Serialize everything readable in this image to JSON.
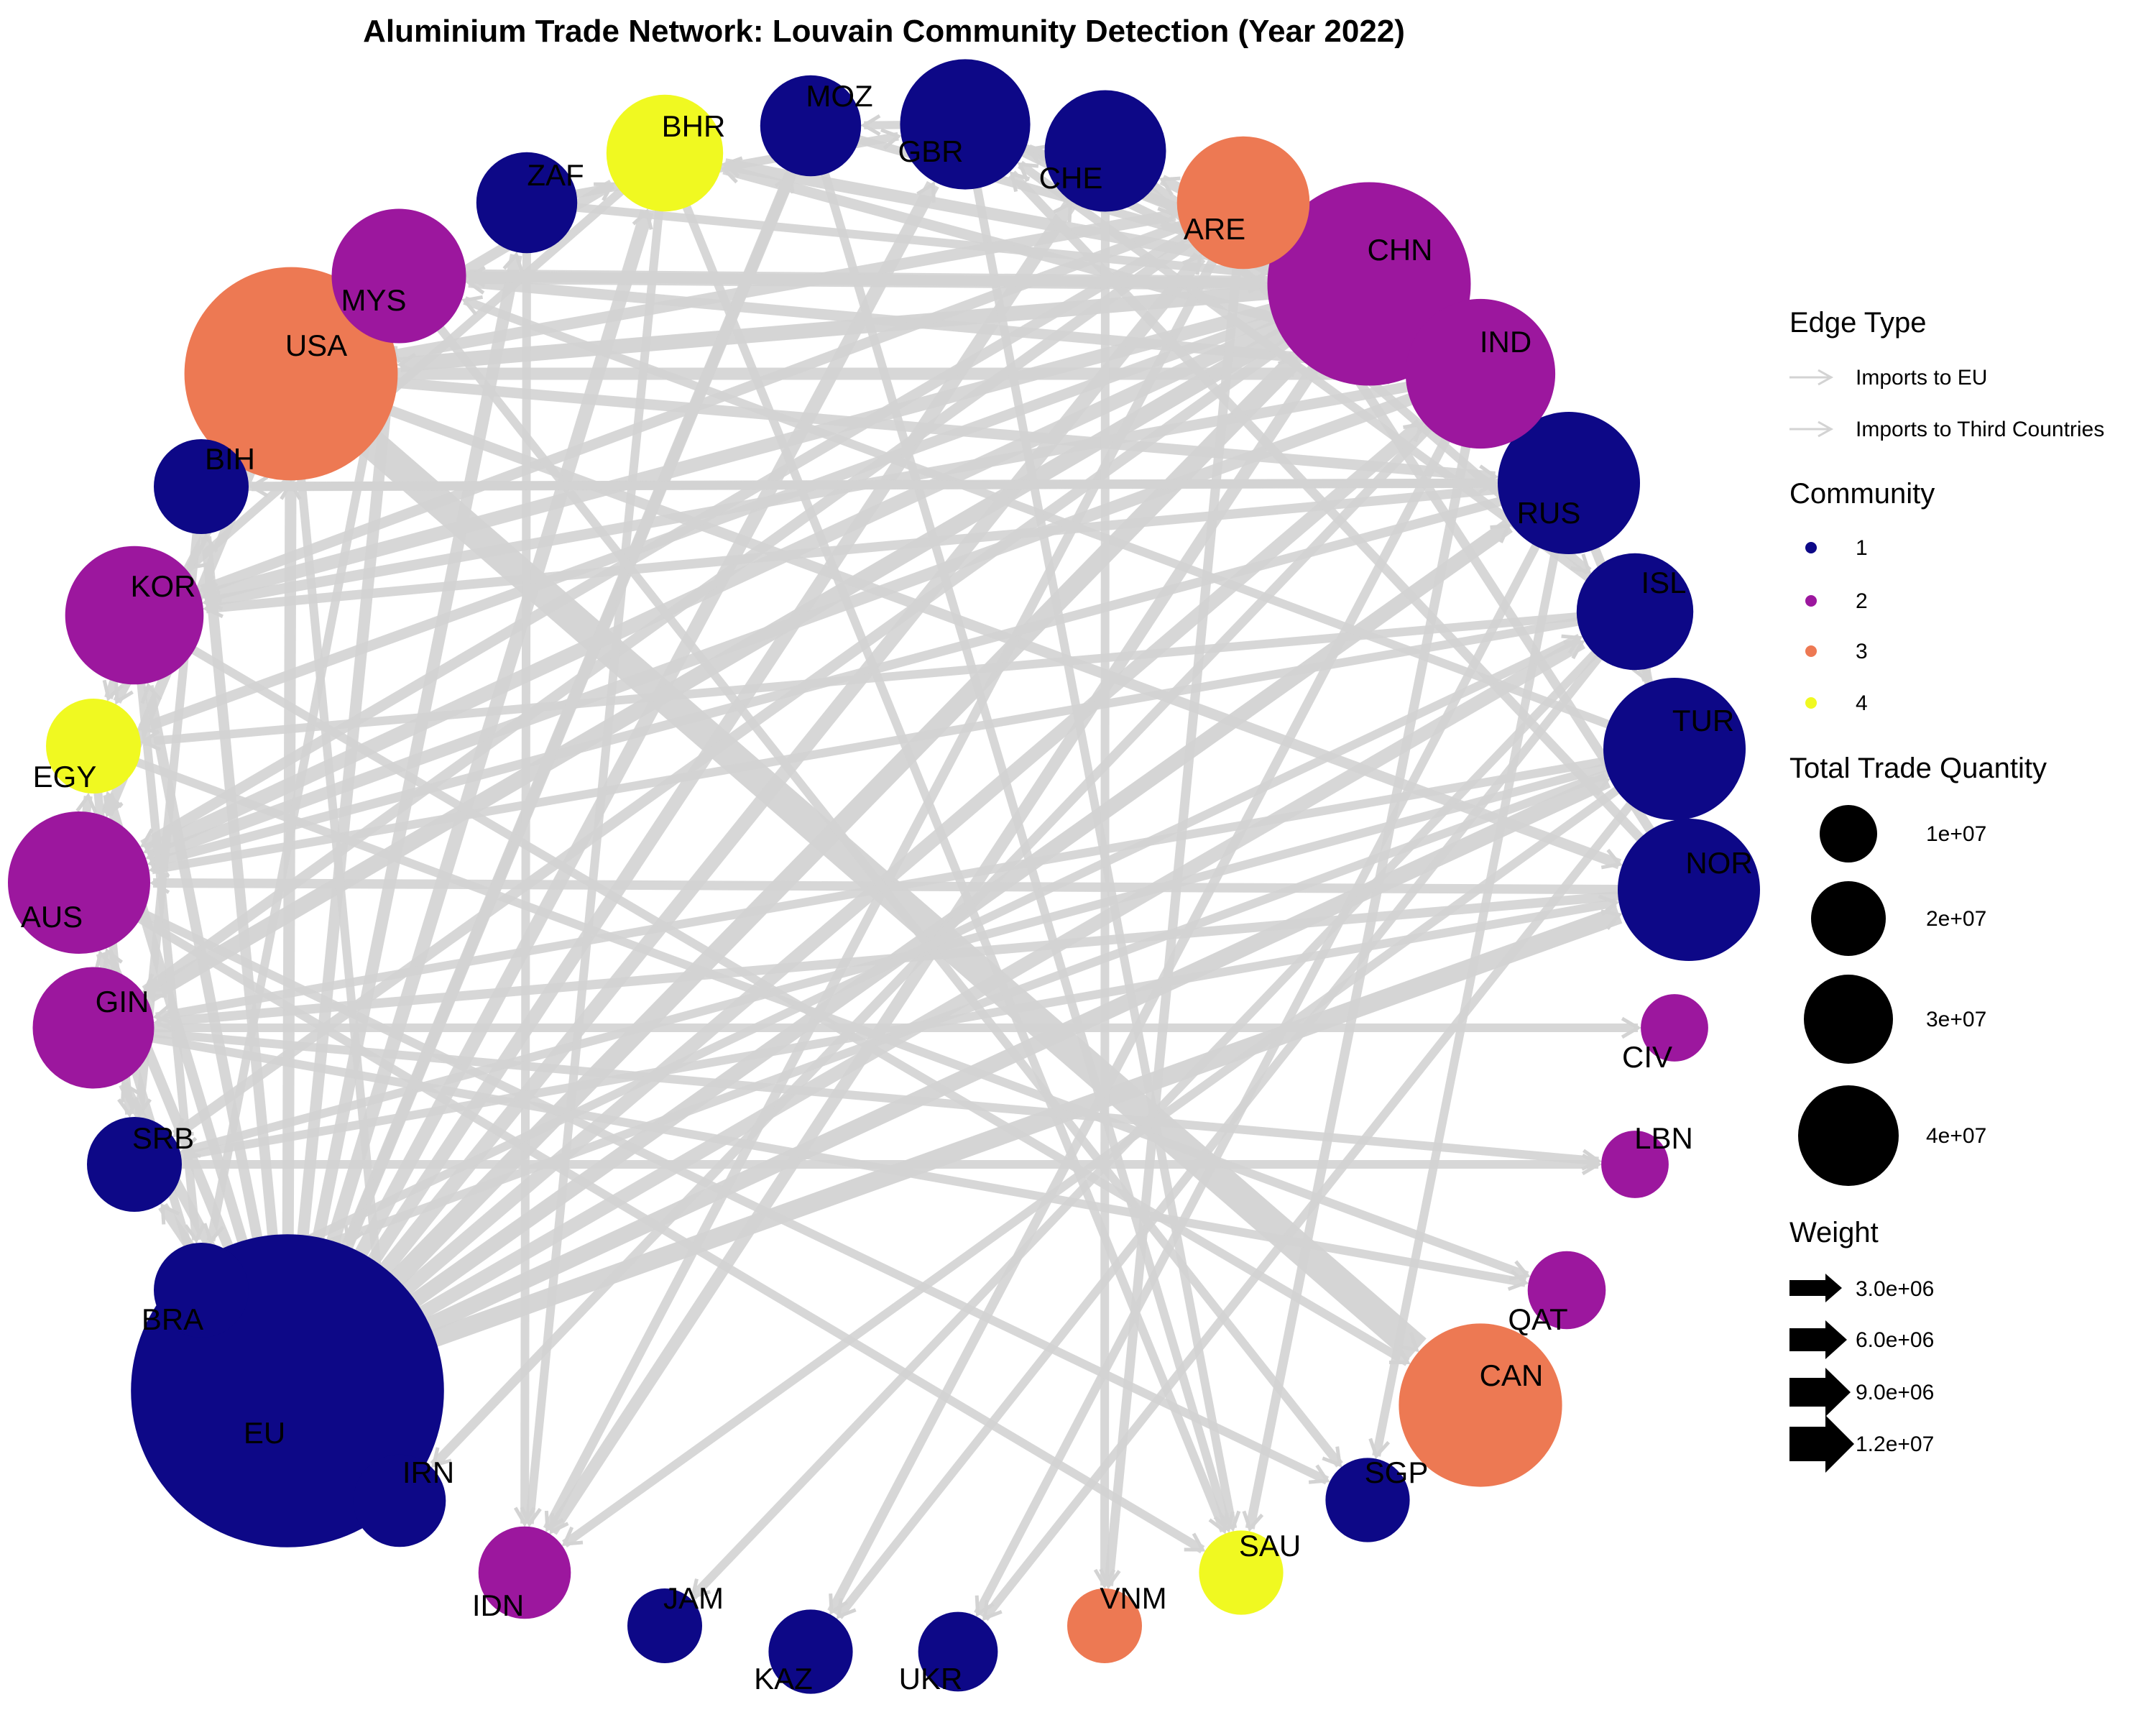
{
  "title": "Aluminium Trade Network: Louvain Community Detection (Year 2022)",
  "communities": [
    {
      "id": "1",
      "color": "#0D0887"
    },
    {
      "id": "2",
      "color": "#9C179E"
    },
    {
      "id": "3",
      "color": "#ED7953"
    },
    {
      "id": "4",
      "color": "#F0F921"
    }
  ],
  "edge_color": "#D3D3D3",
  "nodes": [
    {
      "id": "EU",
      "community": "1",
      "size": 46000000
    },
    {
      "id": "USA",
      "community": "3",
      "size": 20000000
    },
    {
      "id": "CHN",
      "community": "2",
      "size": 18000000
    },
    {
      "id": "CAN",
      "community": "3",
      "size": 11000000
    },
    {
      "id": "NOR",
      "community": "1",
      "size": 8000000
    },
    {
      "id": "TUR",
      "community": "1",
      "size": 8000000
    },
    {
      "id": "RUS",
      "community": "1",
      "size": 8000000
    },
    {
      "id": "IND",
      "community": "2",
      "size": 9000000
    },
    {
      "id": "AUS",
      "community": "2",
      "size": 8000000
    },
    {
      "id": "KOR",
      "community": "2",
      "size": 7500000
    },
    {
      "id": "MYS",
      "community": "2",
      "size": 7000000
    },
    {
      "id": "ARE",
      "community": "3",
      "size": 6800000
    },
    {
      "id": "GBR",
      "community": "1",
      "size": 6500000
    },
    {
      "id": "CHE",
      "community": "1",
      "size": 5500000
    },
    {
      "id": "ISL",
      "community": "1",
      "size": 5000000
    },
    {
      "id": "GIN",
      "community": "2",
      "size": 5500000
    },
    {
      "id": "BHR",
      "community": "4",
      "size": 5000000
    },
    {
      "id": "ZAF",
      "community": "1",
      "size": 3500000
    },
    {
      "id": "MOZ",
      "community": "1",
      "size": 3500000
    },
    {
      "id": "BIH",
      "community": "1",
      "size": 3000000
    },
    {
      "id": "EGY",
      "community": "4",
      "size": 3000000
    },
    {
      "id": "SRB",
      "community": "1",
      "size": 3000000
    },
    {
      "id": "BRA",
      "community": "1",
      "size": 3000000
    },
    {
      "id": "IRN",
      "community": "1",
      "size": 2800000
    },
    {
      "id": "IDN",
      "community": "2",
      "size": 2800000
    },
    {
      "id": "SGP",
      "community": "1",
      "size": 2200000
    },
    {
      "id": "SAU",
      "community": "4",
      "size": 2200000
    },
    {
      "id": "KAZ",
      "community": "1",
      "size": 2200000
    },
    {
      "id": "UKR",
      "community": "1",
      "size": 1900000
    },
    {
      "id": "JAM",
      "community": "1",
      "size": 1600000
    },
    {
      "id": "VNM",
      "community": "3",
      "size": 1600000
    },
    {
      "id": "QAT",
      "community": "2",
      "size": 1800000
    },
    {
      "id": "LBN",
      "community": "2",
      "size": 1200000
    },
    {
      "id": "CIV",
      "community": "2",
      "size": 1200000
    }
  ],
  "edges": [
    [
      "USA",
      "CAN",
      12000000
    ],
    [
      "EU",
      "CHN",
      4500000
    ],
    [
      "EU",
      "NOR",
      4500000
    ],
    [
      "EU",
      "TUR",
      3500000
    ],
    [
      "EU",
      "RUS",
      3000000
    ],
    [
      "EU",
      "ISL",
      2500000
    ],
    [
      "EU",
      "IND",
      2500000
    ],
    [
      "EU",
      "ARE",
      2800000
    ],
    [
      "EU",
      "GBR",
      2500000
    ],
    [
      "EU",
      "CHE",
      2500000
    ],
    [
      "EU",
      "BHR",
      2500000
    ],
    [
      "EU",
      "MOZ",
      2000000
    ],
    [
      "EU",
      "ZAF",
      2000000
    ],
    [
      "EU",
      "MYS",
      1800000
    ],
    [
      "EU",
      "USA",
      1800000
    ],
    [
      "EU",
      "BIH",
      1500000
    ],
    [
      "EU",
      "KOR",
      1500000
    ],
    [
      "EU",
      "AUS",
      1500000
    ],
    [
      "EU",
      "GIN",
      1500000
    ],
    [
      "EU",
      "SRB",
      1500000
    ],
    [
      "EU",
      "BRA",
      1500000
    ],
    [
      "EU",
      "EGY",
      1500000
    ],
    [
      "CHN",
      "USA",
      3000000
    ],
    [
      "CHN",
      "MYS",
      2800000
    ],
    [
      "CHN",
      "KOR",
      2500000
    ],
    [
      "CHN",
      "IND",
      2000000
    ],
    [
      "CHN",
      "AUS",
      2800000
    ],
    [
      "CHN",
      "GIN",
      3500000
    ],
    [
      "CHN",
      "BHR",
      2000000
    ],
    [
      "CHN",
      "ARE",
      2000000
    ],
    [
      "CHN",
      "GBR",
      1500000
    ],
    [
      "CHN",
      "CHE",
      1500000
    ],
    [
      "CHN",
      "RUS",
      1500000
    ],
    [
      "CHN",
      "IDN",
      2000000
    ],
    [
      "CHN",
      "EGY",
      1500000
    ],
    [
      "CHN",
      "SRB",
      1500000
    ],
    [
      "USA",
      "IND",
      2000000
    ],
    [
      "USA",
      "ARE",
      1800000
    ],
    [
      "USA",
      "BHR",
      1500000
    ],
    [
      "USA",
      "NOR",
      1500000
    ],
    [
      "USA",
      "RUS",
      1500000
    ],
    [
      "USA",
      "AUS",
      1500000
    ],
    [
      "IND",
      "AUS",
      2000000
    ],
    [
      "IND",
      "KOR",
      1500000
    ],
    [
      "IND",
      "MYS",
      1500000
    ],
    [
      "IND",
      "IRN",
      1200000
    ],
    [
      "IND",
      "BHR",
      1500000
    ],
    [
      "IND",
      "KAZ",
      1200000
    ],
    [
      "IND",
      "SAU",
      1200000
    ],
    [
      "ARE",
      "AUS",
      1500000
    ],
    [
      "ARE",
      "KOR",
      1500000
    ],
    [
      "ARE",
      "GIN",
      1500000
    ],
    [
      "ARE",
      "IDN",
      1200000
    ],
    [
      "ARE",
      "VNM",
      1200000
    ],
    [
      "RUS",
      "BIH",
      1200000
    ],
    [
      "RUS",
      "KOR",
      1200000
    ],
    [
      "RUS",
      "TUR",
      1200000
    ],
    [
      "RUS",
      "AUS",
      1200000
    ],
    [
      "RUS",
      "UKR",
      1000000
    ],
    [
      "RUS",
      "SGP",
      1000000
    ],
    [
      "NOR",
      "TUR",
      1200000
    ],
    [
      "NOR",
      "GIN",
      1200000
    ],
    [
      "NOR",
      "AUS",
      1200000
    ],
    [
      "NOR",
      "ARE",
      1200000
    ],
    [
      "NOR",
      "GBR",
      1200000
    ],
    [
      "ISL",
      "NOR",
      1000000
    ],
    [
      "ISL",
      "GBR",
      1000000
    ],
    [
      "ISL",
      "AUS",
      1000000
    ],
    [
      "ISL",
      "JAM",
      1000000
    ],
    [
      "ISL",
      "KAZ",
      1000000
    ],
    [
      "ISL",
      "EGY",
      1000000
    ],
    [
      "TUR",
      "BRA",
      1000000
    ],
    [
      "TUR",
      "MYS",
      1000000
    ],
    [
      "TUR",
      "GIN",
      1000000
    ],
    [
      "TUR",
      "IDN",
      1000000
    ],
    [
      "TUR",
      "UKR",
      1000000
    ],
    [
      "TUR",
      "SRB",
      1000000
    ],
    [
      "GBR",
      "CHN",
      1000000
    ],
    [
      "GBR",
      "SAU",
      1000000
    ],
    [
      "GBR",
      "IND",
      1000000
    ],
    [
      "GBR",
      "MOZ",
      900000
    ],
    [
      "CHE",
      "RUS",
      1000000
    ],
    [
      "CHE",
      "VNM",
      1000000
    ],
    [
      "CHE",
      "ISL",
      1000000
    ],
    [
      "MOZ",
      "EU",
      1500000
    ],
    [
      "MOZ",
      "SAU",
      1000000
    ],
    [
      "MOZ",
      "CHN",
      1000000
    ],
    [
      "ZAF",
      "IDN",
      1000000
    ],
    [
      "ZAF",
      "GBR",
      1000000
    ],
    [
      "ZAF",
      "CHN",
      1000000
    ],
    [
      "BHR",
      "IDN",
      1000000
    ],
    [
      "BHR",
      "KOR",
      1000000
    ],
    [
      "BHR",
      "SAU",
      1000000
    ],
    [
      "MYS",
      "CHN",
      1500000
    ],
    [
      "MYS",
      "BRA",
      1000000
    ],
    [
      "MYS",
      "SGP",
      1000000
    ],
    [
      "KOR",
      "EGY",
      1000000
    ],
    [
      "KOR",
      "CAN",
      1000000
    ],
    [
      "KOR",
      "BRA",
      1000000
    ],
    [
      "AUS",
      "EGY",
      1000000
    ],
    [
      "AUS",
      "SGP",
      1000000
    ],
    [
      "AUS",
      "SAU",
      1000000
    ],
    [
      "GIN",
      "CIV",
      1000000
    ],
    [
      "GIN",
      "LBN",
      1000000
    ],
    [
      "GIN",
      "QAT",
      1000000
    ],
    [
      "BIH",
      "RUS",
      1000000
    ],
    [
      "BIH",
      "SRB",
      1000000
    ],
    [
      "SRB",
      "NOR",
      1000000
    ],
    [
      "SRB",
      "LBN",
      1000000
    ],
    [
      "EGY",
      "QAT",
      1000000
    ],
    [
      "EGY",
      "SRB",
      1000000
    ],
    [
      "BRA",
      "ISL",
      1000000
    ],
    [
      "BRA",
      "AUS",
      1000000
    ],
    [
      "USA",
      "IRN",
      1000000
    ],
    [
      "USA",
      "EGY",
      1000000
    ]
  ],
  "legend": {
    "edge_type": {
      "title": "Edge Type",
      "items": [
        "Imports to EU",
        "Imports to Third Countries"
      ]
    },
    "community": {
      "title": "Community",
      "items": [
        "1",
        "2",
        "3",
        "4"
      ]
    },
    "size": {
      "title": "Total Trade Quantity",
      "items": [
        "1e+07",
        "2e+07",
        "3e+07",
        "4e+07"
      ],
      "values": [
        10000000,
        20000000,
        30000000,
        40000000
      ]
    },
    "weight": {
      "title": "Weight",
      "items": [
        "3.0e+06",
        "6.0e+06",
        "9.0e+06",
        "1.2e+07"
      ],
      "values": [
        3000000,
        6000000,
        9000000,
        12000000
      ]
    }
  }
}
